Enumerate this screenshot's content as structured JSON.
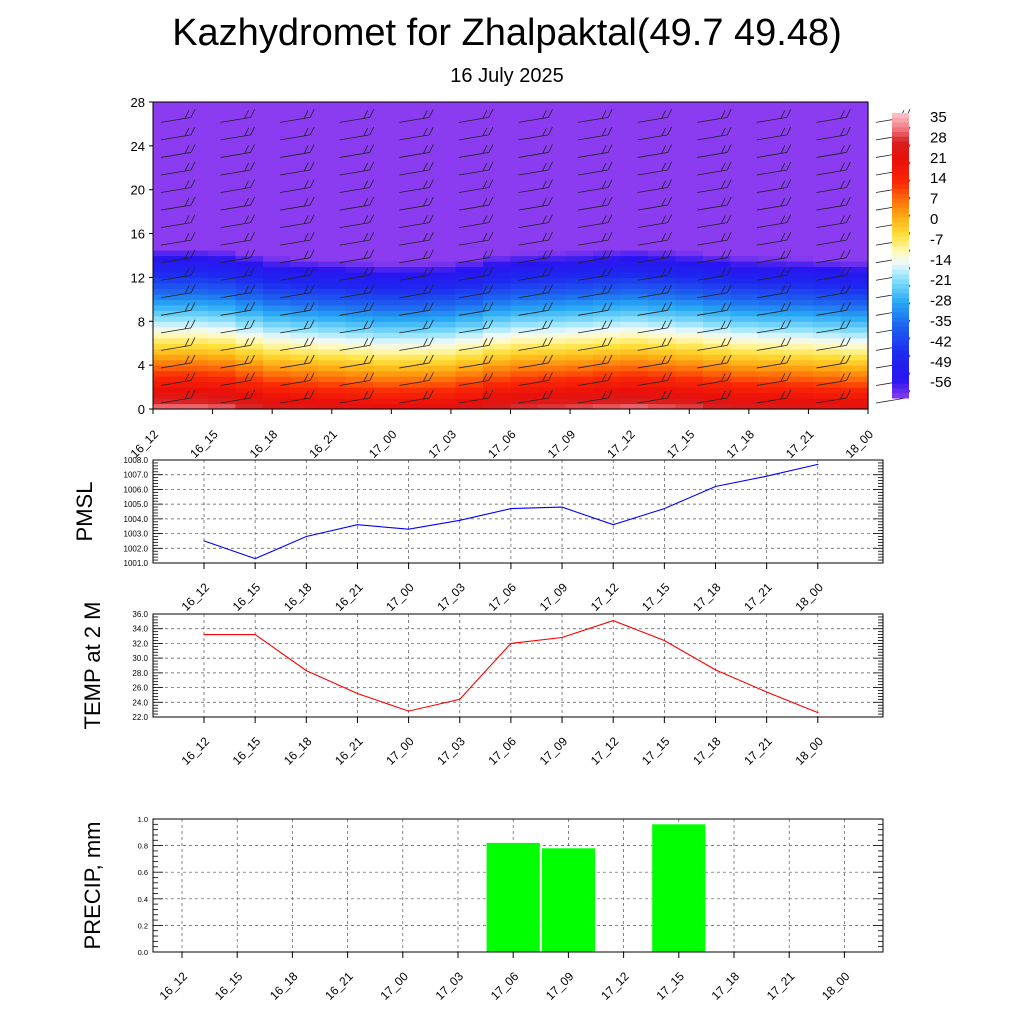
{
  "header": {
    "title": "Kazhydromet for Zhalpaktal(49.7 49.48)",
    "subtitle": "16 July 2025"
  },
  "chart_data": [
    {
      "type": "heatmap",
      "title": "",
      "xlabel": "",
      "ylabel": "",
      "x_ticks": [
        "16_12",
        "16_15",
        "16_18",
        "16_21",
        "17_00",
        "17_03",
        "17_06",
        "17_09",
        "17_12",
        "17_15",
        "17_18",
        "17_21",
        "18_00"
      ],
      "y_ticks": [
        0,
        4,
        8,
        12,
        16,
        20,
        24,
        28
      ],
      "ylim": [
        0,
        28
      ],
      "colorbar": {
        "labels": [
          35,
          28,
          21,
          14,
          7,
          0,
          -7,
          -14,
          -21,
          -28,
          -35,
          -42,
          -49,
          -56
        ],
        "range": [
          -60,
          38
        ]
      },
      "surface_temperature": [
        33,
        33,
        28,
        26,
        24,
        25,
        30,
        31,
        33,
        31,
        28,
        27,
        25
      ],
      "lapse_rate_per_km": 6.3,
      "overlay": "wind barbs"
    },
    {
      "type": "line",
      "ylabel": "PMSL",
      "x": [
        "16_12",
        "16_15",
        "16_18",
        "16_21",
        "17_00",
        "17_03",
        "17_06",
        "17_09",
        "17_12",
        "17_15",
        "17_18",
        "17_21",
        "18_00"
      ],
      "series": [
        {
          "values": [
            1002.5,
            1001.3,
            1002.8,
            1003.6,
            1003.3,
            1003.9,
            1004.7,
            1004.8,
            1003.6,
            1004.7,
            1006.2,
            1006.9,
            1007.7
          ]
        }
      ],
      "ylim": [
        1001.0,
        1008.0
      ],
      "y_ticks": [
        "1001.0",
        "1002.0",
        "1003.0",
        "1004.0",
        "1005.0",
        "1006.0",
        "1007.0",
        "1008.0"
      ],
      "color": "#0000ff",
      "grid": true
    },
    {
      "type": "line",
      "ylabel": "TEMP at 2 M",
      "x": [
        "16_12",
        "16_15",
        "16_18",
        "16_21",
        "17_00",
        "17_03",
        "17_06",
        "17_09",
        "17_12",
        "17_15",
        "17_18",
        "17_21",
        "18_00"
      ],
      "series": [
        {
          "values": [
            33.2,
            33.2,
            28.3,
            25.2,
            22.8,
            24.4,
            32.0,
            32.8,
            35.1,
            32.4,
            28.4,
            25.4,
            22.6
          ]
        }
      ],
      "ylim": [
        22.0,
        36.0
      ],
      "y_ticks": [
        "22.0",
        "24.0",
        "26.0",
        "28.0",
        "30.0",
        "32.0",
        "34.0",
        "36.0"
      ],
      "color": "#ff0000",
      "grid": true
    },
    {
      "type": "bar",
      "ylabel": "PRECIP, mm",
      "categories": [
        "16_12",
        "16_15",
        "16_18",
        "16_21",
        "17_00",
        "17_03",
        "17_06",
        "17_09",
        "17_12",
        "17_15",
        "17_18",
        "17_21",
        "18_00"
      ],
      "values": [
        0,
        0,
        0,
        0,
        0,
        0,
        0.82,
        0.78,
        0,
        0.96,
        0,
        0,
        0
      ],
      "ylim": [
        0.0,
        1.0
      ],
      "y_ticks": [
        "0.0",
        "0.2",
        "0.4",
        "0.6",
        "0.8",
        "1.0"
      ],
      "color": "#00ff00",
      "grid": true
    }
  ]
}
